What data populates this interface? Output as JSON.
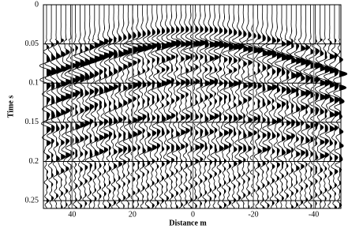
{
  "chart_data": {
    "type": "wiggle",
    "x_label": "Distance m",
    "y_label": "Time s",
    "xlim": [
      49.5,
      -49
    ],
    "xticks": [
      40,
      20,
      0,
      -20,
      -40
    ],
    "ylim": [
      0,
      0.26
    ],
    "yticks": [
      0,
      0.05,
      0.1,
      0.15,
      0.2,
      0.25
    ],
    "grid": true
  }
}
